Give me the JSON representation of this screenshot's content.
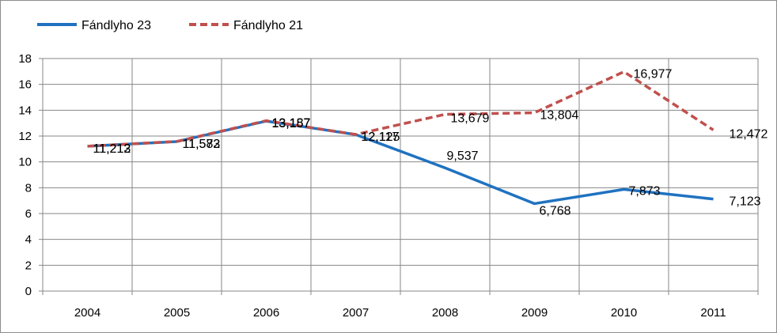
{
  "colors": {
    "series_solid": "#1f72c0",
    "series_dashed": "#c0504d",
    "grid": "#878787",
    "axis": "#878787"
  },
  "chart_data": {
    "type": "line",
    "title": "",
    "xlabel": "",
    "ylabel": "",
    "categories": [
      "2004",
      "2005",
      "2006",
      "2007",
      "2008",
      "2009",
      "2010",
      "2011"
    ],
    "ylim": [
      0,
      18
    ],
    "yticks": [
      0,
      2,
      4,
      6,
      8,
      10,
      12,
      14,
      16,
      18
    ],
    "grid": true,
    "legend_position": "top-left",
    "series": [
      {
        "name": "Fándlyho 23",
        "style": "solid",
        "color": "#1f72c0",
        "values": [
          11.213,
          11.573,
          13.157,
          12.117,
          9.537,
          6.768,
          7.873,
          7.123
        ],
        "labels": [
          "11,213",
          "11,573",
          "13,157",
          "12,117",
          "9,537",
          "6,768",
          "7,873",
          "7,123"
        ]
      },
      {
        "name": "Fándlyho 21",
        "style": "dashed",
        "color": "#c0504d",
        "values": [
          11.212,
          11.582,
          13.187,
          12.125,
          13.679,
          13.804,
          16.977,
          12.472
        ],
        "labels": [
          "11,212",
          "11,582",
          "13,187",
          "12,125",
          "13,679",
          "13,804",
          "16,977",
          "12,472"
        ]
      }
    ]
  }
}
